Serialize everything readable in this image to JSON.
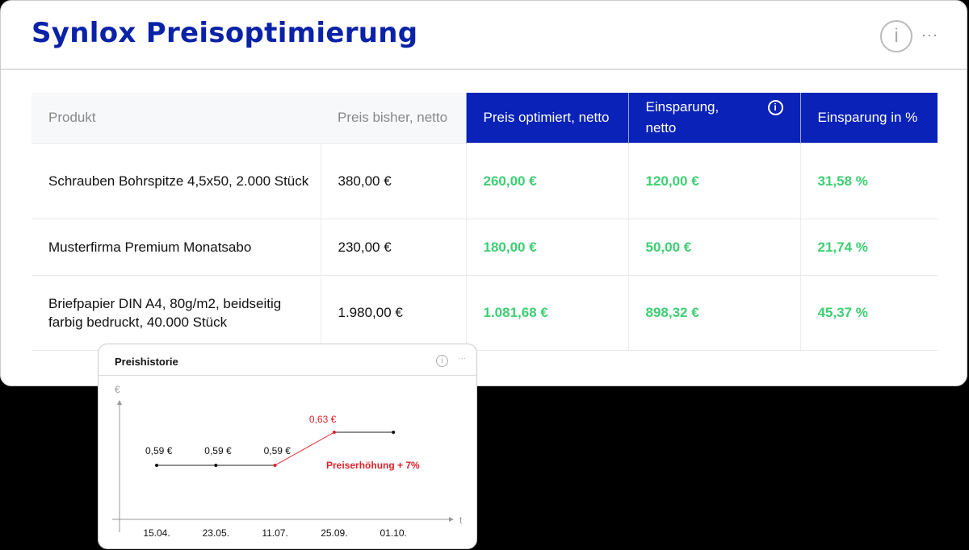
{
  "header": {
    "title": "Synlox Preisoptimierung",
    "info_icon": "info-icon",
    "more_icon": "more-icon"
  },
  "table": {
    "columns": [
      "Produkt",
      "Preis bisher, netto",
      "Preis optimiert, netto",
      "Einsparung, netto",
      "Einsparung in %"
    ],
    "rows": [
      [
        "Schrauben Bohrspitze 4,5x50, 2.000 Stück",
        "380,00 €",
        "260,00 €",
        "120,00 €",
        "31,58 %"
      ],
      [
        "Musterfirma Premium Monatsabo",
        "230,00 €",
        "180,00 €",
        "50,00 €",
        "21,74 %"
      ],
      [
        "Briefpapier DIN A4, 80g/m2, beidseitig farbig bedruckt, 40.000 Stück",
        "1.980,00 €",
        "1.081,68 €",
        "898,32 €",
        "45,37 %"
      ]
    ],
    "colors": {
      "header_accent": "#0a22b8",
      "savings": "#3dcf72"
    }
  },
  "popup": {
    "title": "Preishistorie"
  },
  "chart_data": {
    "type": "line",
    "ylabel": "€",
    "xlabel": "t",
    "categories": [
      "15.04.",
      "23.05.",
      "11.07.",
      "25.09.",
      "01.10."
    ],
    "values": [
      0.59,
      0.59,
      0.59,
      0.63,
      0.63
    ],
    "point_labels": [
      "0,59 €",
      "0,59 €",
      "0,59 €",
      "0,63 €",
      ""
    ],
    "annotation": "Preiserhöhung + 7%",
    "highlight_color": "#e0202a",
    "line_color": "#111111"
  }
}
